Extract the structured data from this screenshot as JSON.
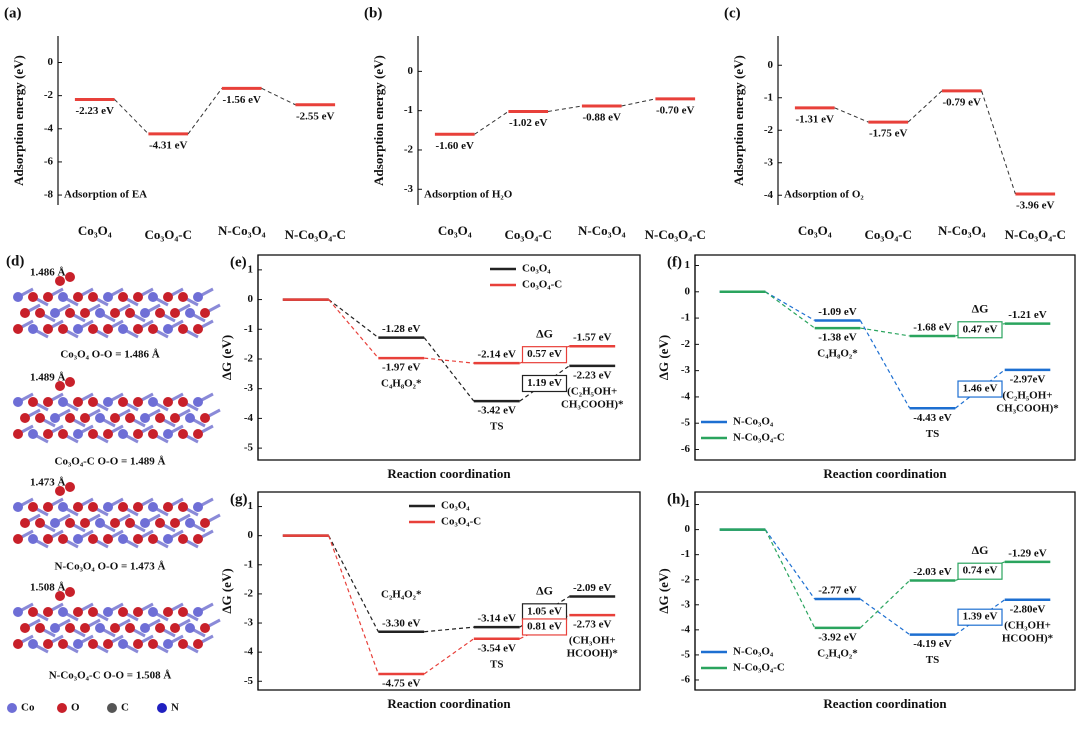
{
  "chart_data": [
    {
      "type": "level",
      "panel_label": "(a)",
      "ylabel": "Adsorption energy (eV)",
      "annotation": "Adsorption of EA",
      "categories": [
        "Co₃O₄",
        "Co₃O₄-C",
        "N-Co₃O₄",
        "N-Co₃O₄-C"
      ],
      "values": [
        -2.23,
        -4.31,
        -1.56,
        -2.55
      ],
      "value_labels": [
        "-2.23 eV",
        "-4.31 eV",
        "-1.56 eV",
        "-2.55 eV"
      ],
      "color": "#e8403a",
      "ylim": [
        -8.6,
        1.6
      ],
      "yticks": [
        0,
        -2,
        -4,
        -6,
        -8
      ]
    },
    {
      "type": "level",
      "panel_label": "(b)",
      "ylabel": "Adsorption energy (eV)",
      "annotation": "Adsorption of H₂O",
      "categories": [
        "Co₃O₄",
        "Co₃O₄-C",
        "N-Co₃O₄",
        "N-Co₃O₄-C"
      ],
      "values": [
        -1.6,
        -1.02,
        -0.88,
        -0.7
      ],
      "value_labels": [
        "-1.60 eV",
        "-1.02 eV",
        "-0.88 eV",
        "-0.70 eV"
      ],
      "color": "#e8403a",
      "ylim": [
        -3.4,
        0.9
      ],
      "yticks": [
        0,
        -1,
        -2,
        -3
      ]
    },
    {
      "type": "level",
      "panel_label": "(c)",
      "ylabel": "Adsorption energy (eV)",
      "annotation": "Adsorption of O₂",
      "categories": [
        "Co₃O₄",
        "Co₃O₄-C",
        "N-Co₃O₄",
        "N-Co₃O₄-C"
      ],
      "values": [
        -1.31,
        -1.75,
        -0.79,
        -3.96
      ],
      "value_labels": [
        "-1.31 eV",
        "-1.75 eV",
        "-0.79 eV",
        "-3.96 eV"
      ],
      "color": "#e8403a",
      "ylim": [
        -4.3,
        0.9
      ],
      "yticks": [
        0,
        -1,
        -2,
        -3,
        -4
      ]
    },
    {
      "type": "free_energy",
      "panel_label": "(e)",
      "ylabel": "ΔG (eV)",
      "xlabel": "Reaction coordination",
      "legend": "upper right",
      "series": [
        {
          "name": "Co₃O₄",
          "color": "#222222",
          "values": [
            0,
            -1.28,
            -3.42,
            -2.23
          ],
          "value_labels": [
            null,
            "-1.28 eV",
            "-3.42 eV",
            "-2.23 eV"
          ]
        },
        {
          "name": "Co₃O₄-C",
          "color": "#e8403a",
          "values": [
            0,
            -1.97,
            -2.14,
            -1.57
          ],
          "value_labels": [
            null,
            "-1.97 eV",
            "-2.14 eV",
            "-1.57 eV"
          ]
        }
      ],
      "barriers": [
        {
          "value": 0.57,
          "label": "0.57 eV",
          "color": "#e8403a"
        },
        {
          "value": 1.19,
          "label": "1.19 eV",
          "color": "#222222"
        }
      ],
      "delta_label": "ΔG",
      "annotations": [
        "C₄H₈O₂*",
        "TS",
        "(C₂H₅OH+",
        "CH₃COOH)*"
      ],
      "ylim": [
        -5.4,
        1.5
      ],
      "yticks": [
        1,
        0,
        -1,
        -2,
        -3,
        -4,
        -5
      ]
    },
    {
      "type": "free_energy",
      "panel_label": "(f)",
      "ylabel": "ΔG (eV)",
      "xlabel": "Reaction coordination",
      "legend": "lower left",
      "series": [
        {
          "name": "N-Co₃O₄",
          "color": "#1d6fd1",
          "values": [
            0,
            -1.09,
            -4.43,
            -2.97
          ],
          "value_labels": [
            null,
            "-1.09 eV",
            "-4.43 eV",
            "-2.97eV"
          ]
        },
        {
          "name": "N-Co₃O₄-C",
          "color": "#2aa45e",
          "values": [
            0,
            -1.38,
            -1.68,
            -1.21
          ],
          "value_labels": [
            null,
            "-1.38 eV",
            "-1.68 eV",
            "-1.21 eV"
          ]
        }
      ],
      "barriers": [
        {
          "value": 0.47,
          "label": "0.47 eV",
          "color": "#2aa45e"
        },
        {
          "value": 1.46,
          "label": "1.46 eV",
          "color": "#1d6fd1"
        }
      ],
      "delta_label": "ΔG",
      "annotations": [
        "C₄H₈O₂*",
        "TS",
        "(C₂H₅OH+",
        "CH₃COOH)*"
      ],
      "ylim": [
        -6.4,
        1.4
      ],
      "yticks": [
        1,
        0,
        -1,
        -2,
        -3,
        -4,
        -5,
        -6
      ]
    },
    {
      "type": "free_energy",
      "panel_label": "(g)",
      "ylabel": "ΔG (eV)",
      "xlabel": "Reaction coordination",
      "legend": "upper center",
      "series": [
        {
          "name": "Co₃O₄",
          "color": "#222222",
          "values": [
            0,
            -3.3,
            -3.14,
            -2.09
          ],
          "value_labels": [
            null,
            "-3.30 eV",
            "-3.14 eV",
            "-2.09 eV"
          ]
        },
        {
          "name": "Co₃O₄-C",
          "color": "#e8403a",
          "values": [
            0,
            -4.75,
            -3.54,
            -2.73
          ],
          "value_labels": [
            null,
            "-4.75 eV",
            "-3.54 eV",
            "-2.73 eV"
          ]
        }
      ],
      "barriers": [
        {
          "value": 1.05,
          "label": "1.05 eV",
          "color": "#222222"
        },
        {
          "value": 0.81,
          "label": "0.81 eV",
          "color": "#e8403a"
        }
      ],
      "delta_label": "ΔG",
      "annotations": [
        "C₂H₄O₂*",
        "TS",
        "(CH₃OH+",
        "HCOOH)*"
      ],
      "ylim": [
        -5.3,
        1.5
      ],
      "yticks": [
        1,
        0,
        -1,
        -2,
        -3,
        -4,
        -5
      ]
    },
    {
      "type": "free_energy",
      "panel_label": "(h)",
      "ylabel": "ΔG (eV)",
      "xlabel": "Reaction coordination",
      "legend": "lower left",
      "series": [
        {
          "name": "N-Co₃O₄",
          "color": "#1d6fd1",
          "values": [
            0,
            -2.77,
            -4.19,
            -2.8
          ],
          "value_labels": [
            null,
            "-2.77 eV",
            "-4.19 eV",
            "-2.80eV"
          ]
        },
        {
          "name": "N-Co₃O₄-C",
          "color": "#2aa45e",
          "values": [
            0,
            -3.92,
            -2.03,
            -1.29
          ],
          "value_labels": [
            null,
            "-3.92 eV",
            "-2.03 eV",
            "-1.29 eV"
          ]
        }
      ],
      "barriers": [
        {
          "value": 0.74,
          "label": "0.74 eV",
          "color": "#2aa45e"
        },
        {
          "value": 1.39,
          "label": "1.39 eV",
          "color": "#1d6fd1"
        }
      ],
      "delta_label": "ΔG",
      "annotations": [
        "C₂H₄O₂*",
        "TS",
        "(CH₃OH+",
        "HCOOH)*"
      ],
      "ylim": [
        -6.4,
        1.5
      ],
      "yticks": [
        1,
        0,
        -1,
        -2,
        -3,
        -4,
        -5,
        -6
      ]
    }
  ],
  "structures": {
    "panel_label": "(d)",
    "items": [
      {
        "bond_label": "1.486 Å",
        "caption": "Co₃O₄ O-O = 1.486 Å"
      },
      {
        "bond_label": "1.489 Å",
        "caption": "Co₃O₄-C O-O = 1.489 Å"
      },
      {
        "bond_label": "1.473 Å",
        "caption": "N-Co₃O₄ O-O = 1.473 Å"
      },
      {
        "bond_label": "1.508 Å",
        "caption": "N-Co₃O₄-C O-O = 1.508 Å"
      }
    ],
    "legend": [
      "Co",
      "O",
      "C",
      "N"
    ]
  }
}
